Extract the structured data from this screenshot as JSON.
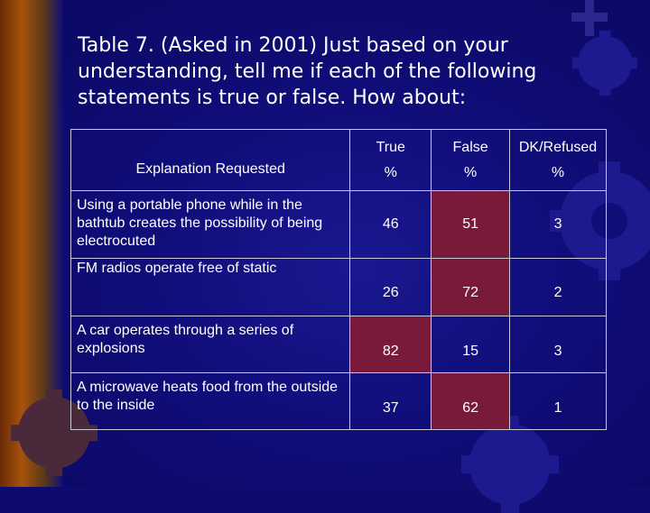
{
  "slide": {
    "title": "Table 7.  (Asked in 2001) Just based on your understanding, tell me if each of the following statements is true or false. How about:"
  },
  "table": {
    "header": {
      "label": "Explanation Requested",
      "col1": "True",
      "col1_unit": "%",
      "col2": "False",
      "col2_unit": "%",
      "col3": "DK/Refused",
      "col3_unit": "%"
    },
    "rows": [
      {
        "statement": "Using a portable phone while in the bathtub creates the possibility of being electrocuted",
        "true": "46",
        "false": "51",
        "dk": "3"
      },
      {
        "statement": "FM radios operate free of static",
        "true": "26",
        "false": "72",
        "dk": "2"
      },
      {
        "statement": "A car operates through a series of explosions",
        "true": "82",
        "false": "15",
        "dk": "3"
      },
      {
        "statement": "A microwave heats food from the outside to the inside",
        "true": "37",
        "false": "62",
        "dk": "1"
      }
    ]
  },
  "colors": {
    "background": "#0f0d78",
    "highlight_cell": "#7a1a3a",
    "left_strip": "#a8520c"
  }
}
